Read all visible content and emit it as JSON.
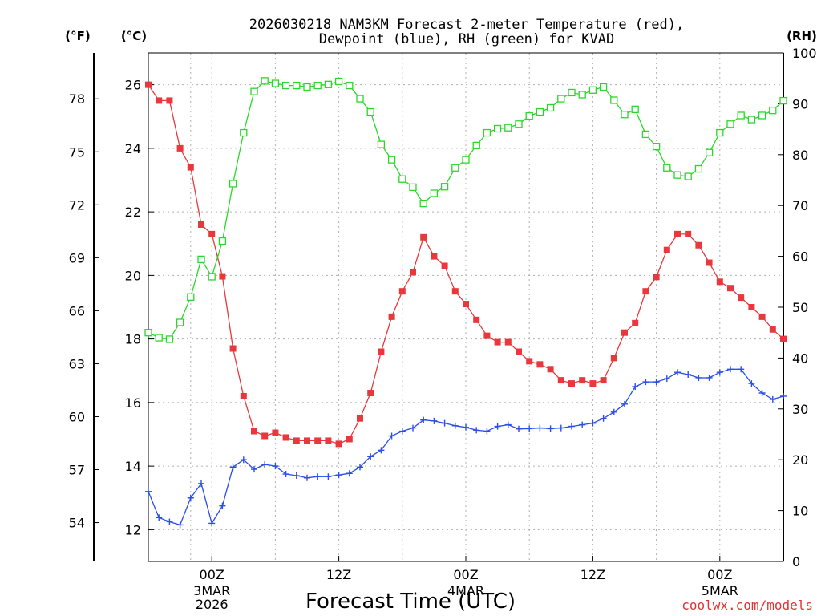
{
  "chart_data": {
    "type": "line",
    "title": [
      "2026030218 NAM3KM Forecast 2-meter Temperature (red),",
      "Dewpoint (blue), RH (green) for KVAD"
    ],
    "xlabel": "Forecast Time (UTC)",
    "credit": "coolwx.com/models",
    "y_left_label": "(°C)",
    "y_far_left_label": "(°F)",
    "y_right_label": "(RH)",
    "ylim_c": [
      11,
      27
    ],
    "ylim_rh": [
      0,
      100
    ],
    "yticks_c": [
      12,
      14,
      16,
      18,
      20,
      22,
      24,
      26
    ],
    "yticks_f": [
      54,
      57,
      60,
      63,
      66,
      69,
      72,
      75,
      78
    ],
    "yticks_rh": [
      0,
      10,
      20,
      30,
      40,
      50,
      60,
      70,
      80,
      90,
      100
    ],
    "x_hours_range": [
      -6,
      54
    ],
    "x_ticks": [
      {
        "hour": 0,
        "label": "00Z",
        "sub": [
          "3MAR",
          "2026"
        ]
      },
      {
        "hour": 12,
        "label": "12Z",
        "sub": []
      },
      {
        "hour": 24,
        "label": "00Z",
        "sub": [
          "4MAR"
        ]
      },
      {
        "hour": 36,
        "label": "12Z",
        "sub": []
      },
      {
        "hour": 48,
        "label": "00Z",
        "sub": [
          "5MAR"
        ]
      }
    ],
    "x_grid_hours": [
      -2,
      0,
      6,
      12,
      18,
      24,
      30,
      36,
      42,
      48,
      54
    ],
    "series": [
      {
        "name": "Temperature",
        "unit": "C",
        "color": "#e8383d",
        "marker": "filled-square",
        "x": [
          -6,
          -5,
          -4,
          -3,
          -2,
          -1,
          0,
          1,
          2,
          3,
          4,
          5,
          6,
          7,
          8,
          9,
          10,
          11,
          12,
          13,
          14,
          15,
          16,
          17,
          18,
          19,
          20,
          21,
          22,
          23,
          24,
          25,
          26,
          27,
          28,
          29,
          30,
          31,
          32,
          33,
          34,
          35,
          36,
          37,
          38,
          39,
          40,
          41,
          42,
          43,
          44,
          45,
          46,
          47,
          48,
          49,
          50,
          51,
          52,
          53,
          54
        ],
        "values": [
          26.0,
          25.5,
          25.5,
          24.0,
          23.4,
          21.6,
          21.3,
          19.97,
          17.7,
          16.2,
          15.1,
          14.95,
          15.05,
          14.9,
          14.8,
          14.8,
          14.8,
          14.8,
          14.7,
          14.85,
          15.5,
          16.3,
          17.6,
          18.7,
          19.5,
          20.1,
          21.2,
          20.6,
          20.3,
          19.5,
          19.1,
          18.6,
          18.1,
          17.9,
          17.9,
          17.6,
          17.3,
          17.2,
          17.05,
          16.7,
          16.6,
          16.7,
          16.6,
          16.7,
          17.4,
          18.2,
          18.5,
          19.5,
          19.95,
          20.8,
          21.3,
          21.3,
          20.95,
          20.4,
          19.8,
          19.6,
          19.3,
          19.0,
          18.7,
          18.3,
          18.0
        ]
      },
      {
        "name": "Dewpoint",
        "unit": "C",
        "color": "#2b4de8",
        "marker": "plus",
        "x": [
          -6,
          -5,
          -4,
          -3,
          -2,
          -1,
          0,
          1,
          2,
          3,
          4,
          5,
          6,
          7,
          8,
          9,
          10,
          11,
          12,
          13,
          14,
          15,
          16,
          17,
          18,
          19,
          20,
          21,
          22,
          23,
          24,
          25,
          26,
          27,
          28,
          29,
          30,
          31,
          32,
          33,
          34,
          35,
          36,
          37,
          38,
          39,
          40,
          41,
          42,
          43,
          44,
          45,
          46,
          47,
          48,
          49,
          50,
          51,
          52,
          53,
          54
        ],
        "values": [
          13.2,
          12.38,
          12.25,
          12.15,
          13.0,
          13.45,
          12.2,
          12.75,
          13.97,
          14.2,
          13.9,
          14.05,
          14.0,
          13.75,
          13.7,
          13.63,
          13.67,
          13.67,
          13.72,
          13.77,
          13.97,
          14.3,
          14.5,
          14.95,
          15.1,
          15.2,
          15.45,
          15.42,
          15.35,
          15.27,
          15.22,
          15.13,
          15.1,
          15.25,
          15.3,
          15.17,
          15.18,
          15.2,
          15.18,
          15.2,
          15.25,
          15.3,
          15.35,
          15.5,
          15.7,
          15.95,
          16.5,
          16.65,
          16.65,
          16.75,
          16.95,
          16.88,
          16.78,
          16.78,
          16.95,
          17.05,
          17.05,
          16.6,
          16.3,
          16.1,
          16.2
        ]
      },
      {
        "name": "RH",
        "unit": "%",
        "color": "#2ad82a",
        "marker": "open-square",
        "x": [
          -6,
          -5,
          -4,
          -3,
          -2,
          -1,
          0,
          1,
          2,
          3,
          4,
          5,
          6,
          7,
          8,
          9,
          10,
          11,
          12,
          13,
          14,
          15,
          16,
          17,
          18,
          19,
          20,
          21,
          22,
          23,
          24,
          25,
          26,
          27,
          28,
          29,
          30,
          31,
          32,
          33,
          34,
          35,
          36,
          37,
          38,
          39,
          40,
          41,
          42,
          43,
          44,
          45,
          46,
          47,
          48,
          49,
          50,
          51,
          52,
          53,
          54
        ],
        "values": [
          45,
          44,
          43.7,
          47,
          52,
          59.4,
          56,
          63,
          74.3,
          84.3,
          92.4,
          94.5,
          94,
          93.6,
          93.6,
          93.3,
          93.6,
          93.8,
          94.4,
          93.6,
          91,
          88.4,
          82,
          79,
          75.2,
          73.6,
          70.4,
          72.4,
          73.7,
          77.4,
          79,
          81.8,
          84.3,
          85.1,
          85.3,
          86,
          87.6,
          88.4,
          89.2,
          91,
          92.2,
          91.8,
          92.7,
          93.3,
          90.7,
          87.9,
          88.9,
          84,
          81.6,
          77.4,
          76,
          75.7,
          77.2,
          80.4,
          84.3,
          86,
          87.7,
          86.9,
          87.7,
          88.7,
          90.6
        ]
      }
    ]
  }
}
